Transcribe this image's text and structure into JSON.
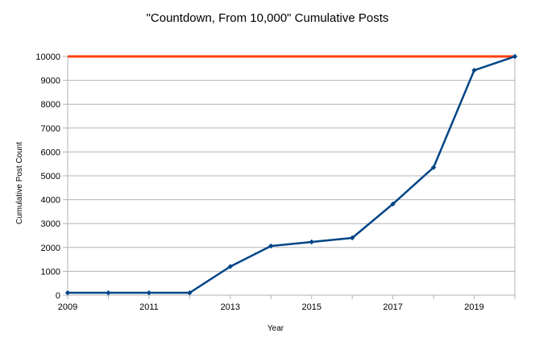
{
  "chart_data": {
    "type": "line",
    "title": "\"Countdown, From 10,000\" Cumulative Posts",
    "xlabel": "Year",
    "ylabel": "Cumulative Post Count",
    "xlim": [
      2009,
      2020
    ],
    "ylim": [
      0,
      10000
    ],
    "x_ticks": [
      2009,
      2011,
      2013,
      2015,
      2017,
      2019
    ],
    "y_ticks": [
      0,
      1000,
      2000,
      3000,
      4000,
      5000,
      6000,
      7000,
      8000,
      9000,
      10000
    ],
    "grid": true,
    "legend": "none",
    "series": [
      {
        "color": "#004586",
        "marker": "diamond",
        "x": [
          2009,
          2010,
          2011,
          2012,
          2013,
          2014,
          2015,
          2016,
          2017,
          2018,
          2019,
          2020
        ],
        "values": [
          100,
          100,
          100,
          100,
          1200,
          2060,
          2230,
          2400,
          3820,
          5350,
          9420,
          10000
        ]
      }
    ],
    "reference_lines": [
      {
        "y": 10000,
        "color": "#ff420e"
      }
    ],
    "colors": {
      "grid": "#b3b3b3",
      "axis": "#b3b3b3"
    }
  }
}
